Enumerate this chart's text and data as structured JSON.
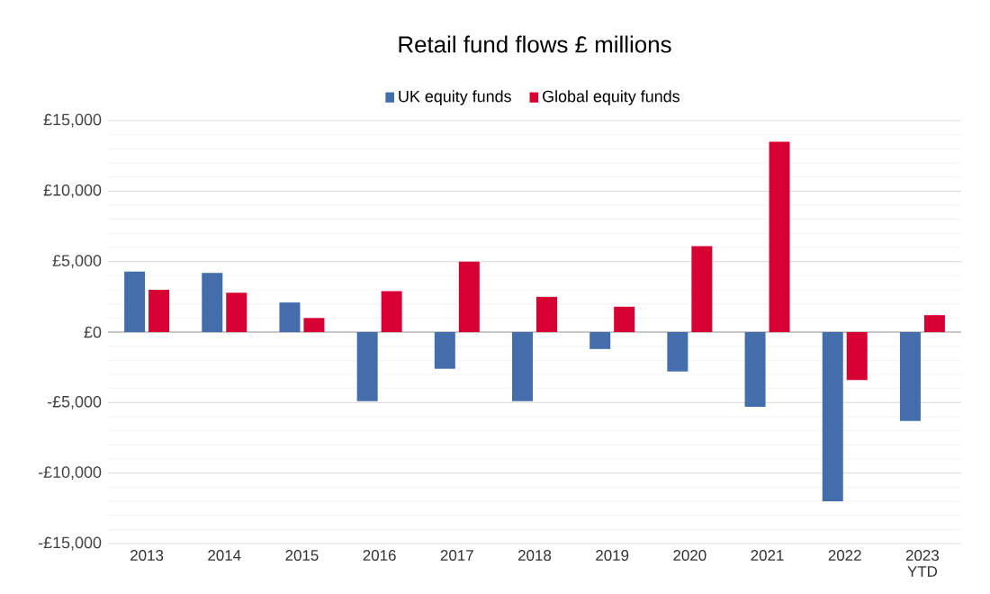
{
  "chart_data": {
    "type": "bar",
    "title": "Retail fund flows £ millions",
    "categories": [
      "2013",
      "2014",
      "2015",
      "2016",
      "2017",
      "2018",
      "2019",
      "2020",
      "2021",
      "2022",
      "2023 YTD"
    ],
    "series": [
      {
        "name": "UK equity funds",
        "color": "#436eab",
        "values": [
          4300,
          4200,
          2100,
          -4900,
          -2600,
          -4900,
          -1200,
          -2800,
          -5300,
          -12000,
          -6300
        ]
      },
      {
        "name": "Global equity funds",
        "color": "#d70032",
        "values": [
          3000,
          2800,
          1000,
          2900,
          5000,
          2500,
          1800,
          6100,
          13500,
          -3400,
          1200
        ]
      }
    ],
    "ylim": [
      -15000,
      15000
    ],
    "yticks": [
      {
        "value": -15000,
        "label": "-£15,000"
      },
      {
        "value": -10000,
        "label": "-£10,000"
      },
      {
        "value": -5000,
        "label": "-£5,000"
      },
      {
        "value": 0,
        "label": "£0"
      },
      {
        "value": 5000,
        "label": "£5,000"
      },
      {
        "value": 10000,
        "label": "£10,000"
      },
      {
        "value": 15000,
        "label": "£15,000"
      }
    ],
    "grid": true,
    "legend": "top"
  }
}
